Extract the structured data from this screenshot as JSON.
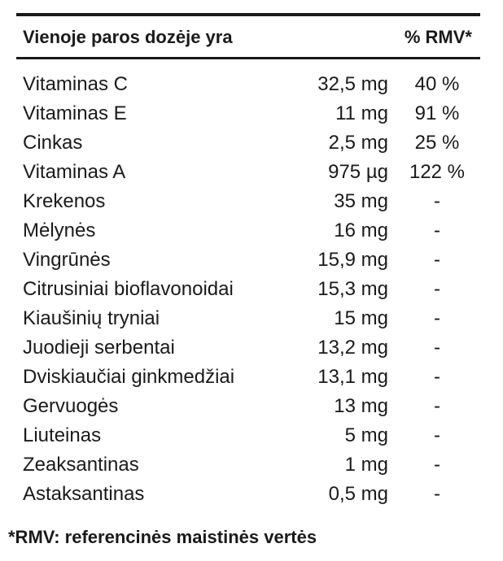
{
  "header": {
    "name_label": "Vienoje paros dozėje yra",
    "rmv_label": "% RMV*"
  },
  "rows": [
    {
      "name": "Vitaminas C",
      "amount": "32,5 mg",
      "rmv": "40 %"
    },
    {
      "name": "Vitaminas E",
      "amount": "11 mg",
      "rmv": "91 %"
    },
    {
      "name": "Cinkas",
      "amount": "2,5 mg",
      "rmv": "25 %"
    },
    {
      "name": "Vitaminas A",
      "amount": "975 µg",
      "rmv": "122 %"
    },
    {
      "name": "Krekenos",
      "amount": "35 mg",
      "rmv": "-"
    },
    {
      "name": "Mėlynės",
      "amount": "16 mg",
      "rmv": "-"
    },
    {
      "name": "Vingrūnės",
      "amount": "15,9 mg",
      "rmv": "-"
    },
    {
      "name": "Citrusiniai bioflavonoidai",
      "amount": "15,3 mg",
      "rmv": "-"
    },
    {
      "name": "Kiaušinių tryniai",
      "amount": "15 mg",
      "rmv": "-"
    },
    {
      "name": "Juodieji serbentai",
      "amount": "13,2 mg",
      "rmv": "-"
    },
    {
      "name": "Dviskiaučiai ginkmedžiai",
      "amount": "13,1 mg",
      "rmv": "-"
    },
    {
      "name": "Gervuogės",
      "amount": "13 mg",
      "rmv": "-"
    },
    {
      "name": "Liuteinas",
      "amount": "5 mg",
      "rmv": "-"
    },
    {
      "name": "Zeaksantinas",
      "amount": "1 mg",
      "rmv": "-"
    },
    {
      "name": "Astaksantinas",
      "amount": "0,5 mg",
      "rmv": "-"
    }
  ],
  "footnote": "*RMV: referencinės maistinės vertės"
}
